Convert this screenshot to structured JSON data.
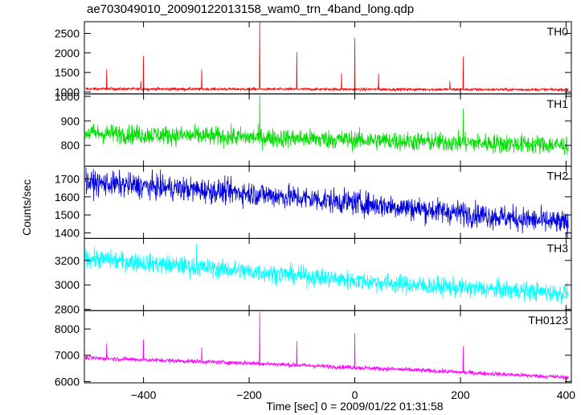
{
  "chart_data": {
    "type": "line",
    "title": "ae703049010_20090122013158_wam0_trn_4band_long.qdp",
    "xlabel": "Time [sec] 0 = 2009/01/22 01:31:58",
    "ylabel": "Counts/sec",
    "xlim": [
      -512,
      410
    ],
    "xticks": [
      -400,
      -200,
      0,
      200,
      400
    ],
    "grid": false,
    "panels": [
      {
        "name": "TH0",
        "color": "#ff0000",
        "ylim": [
          950,
          2800
        ],
        "yticks": [
          1000,
          1500,
          2000,
          2500
        ],
        "trend": [
          [
            -510,
            1080
          ],
          [
            410,
            1060
          ]
        ],
        "noise": 25,
        "spikes": [
          [
            -470,
            1580
          ],
          [
            -405,
            1280
          ],
          [
            -400,
            1920
          ],
          [
            -290,
            1580
          ],
          [
            -180,
            2800
          ],
          [
            -110,
            2020
          ],
          [
            -25,
            1480
          ],
          [
            0,
            2380
          ],
          [
            45,
            1470
          ],
          [
            180,
            1280
          ],
          [
            205,
            1910
          ]
        ]
      },
      {
        "name": "TH1",
        "color": "#00dd00",
        "ylim": [
          715,
          1010
        ],
        "yticks": [
          800,
          900,
          1000
        ],
        "trend": [
          [
            -510,
            850
          ],
          [
            410,
            800
          ]
        ],
        "noise": 28,
        "spikes": [
          [
            -180,
            1005
          ],
          [
            205,
            950
          ]
        ]
      },
      {
        "name": "TH2",
        "color": "#0000dd",
        "ylim": [
          1370,
          1770
        ],
        "yticks": [
          1400,
          1500,
          1600,
          1700
        ],
        "trend": [
          [
            -510,
            1680
          ],
          [
            -200,
            1620
          ],
          [
            100,
            1540
          ],
          [
            410,
            1450
          ]
        ],
        "noise": 48,
        "spikes": []
      },
      {
        "name": "TH3",
        "color": "#00ffff",
        "ylim": [
          2790,
          3380
        ],
        "yticks": [
          2800,
          3000,
          3200
        ],
        "trend": [
          [
            -510,
            3220
          ],
          [
            -200,
            3110
          ],
          [
            100,
            3000
          ],
          [
            410,
            2930
          ]
        ],
        "noise": 55,
        "spikes": [
          [
            -300,
            3330
          ]
        ]
      },
      {
        "name": "TH0123",
        "color": "#ff00ff",
        "ylim": [
          5950,
          8700
        ],
        "yticks": [
          6000,
          7000,
          8000
        ],
        "trend": [
          [
            -510,
            6900
          ],
          [
            -200,
            6700
          ],
          [
            100,
            6450
          ],
          [
            410,
            6150
          ]
        ],
        "noise": 60,
        "spikes": [
          [
            -470,
            7450
          ],
          [
            -400,
            7600
          ],
          [
            -290,
            7300
          ],
          [
            -180,
            8650
          ],
          [
            -110,
            7550
          ],
          [
            0,
            7850
          ],
          [
            205,
            7350
          ]
        ]
      }
    ]
  }
}
